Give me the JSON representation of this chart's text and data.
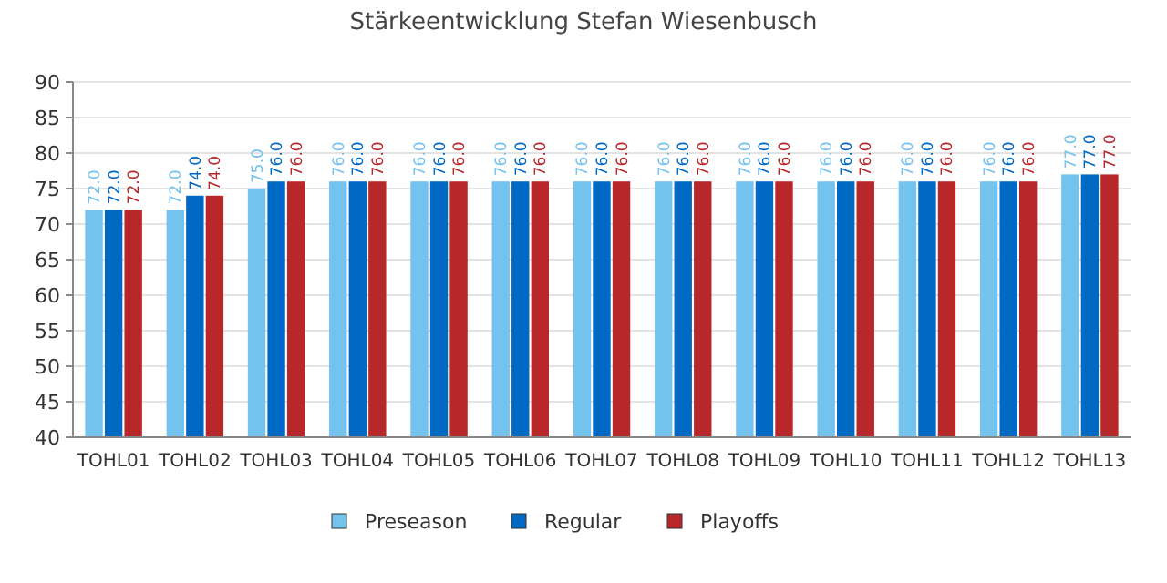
{
  "chart_data": {
    "type": "bar",
    "title": "Stärkeentwicklung Stefan Wiesenbusch",
    "categories": [
      "TOHL01",
      "TOHL02",
      "TOHL03",
      "TOHL04",
      "TOHL05",
      "TOHL06",
      "TOHL07",
      "TOHL08",
      "TOHL09",
      "TOHL10",
      "TOHL11",
      "TOHL12",
      "TOHL13"
    ],
    "series": [
      {
        "name": "Preseason",
        "color": "#74c2ee",
        "values": [
          72,
          72,
          75,
          76,
          76,
          76,
          76,
          76,
          76,
          76,
          76,
          76,
          77
        ],
        "value_labels": [
          "72.0",
          "72.0",
          "75.0",
          "76.0",
          "76.0",
          "76.0",
          "76.0",
          "76.0",
          "76.0",
          "76.0",
          "76.0",
          "76.0",
          "77.0"
        ]
      },
      {
        "name": "Regular",
        "color": "#0069c4",
        "values": [
          72,
          74,
          76,
          76,
          76,
          76,
          76,
          76,
          76,
          76,
          76,
          76,
          77
        ],
        "value_labels": [
          "72.0",
          "74.0",
          "76.0",
          "76.0",
          "76.0",
          "76.0",
          "76.0",
          "76.0",
          "76.0",
          "76.0",
          "76.0",
          "76.0",
          "77.0"
        ]
      },
      {
        "name": "Playoffs",
        "color": "#b8282a",
        "values": [
          72,
          74,
          76,
          76,
          76,
          76,
          76,
          76,
          76,
          76,
          76,
          76,
          77
        ],
        "value_labels": [
          "72.0",
          "74.0",
          "76.0",
          "76.0",
          "76.0",
          "76.0",
          "76.0",
          "76.0",
          "76.0",
          "76.0",
          "76.0",
          "76.0",
          "77.0"
        ]
      }
    ],
    "ylim": [
      40,
      90
    ],
    "yticks": [
      40,
      45,
      50,
      55,
      60,
      65,
      70,
      75,
      80,
      85,
      90
    ],
    "grid": "y",
    "legend": "bottom"
  }
}
